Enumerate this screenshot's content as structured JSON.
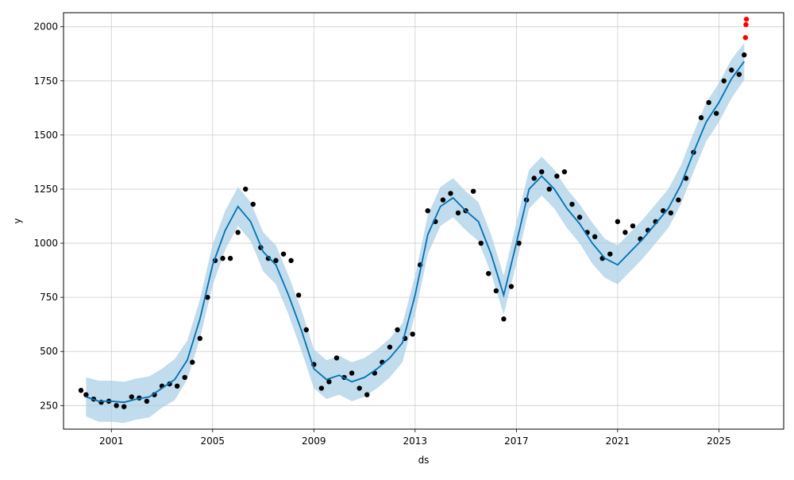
{
  "chart_data": {
    "type": "line",
    "xlabel": "ds",
    "ylabel": "y",
    "x_ticks": [
      "2001",
      "2005",
      "2009",
      "2013",
      "2017",
      "2021",
      "2025"
    ],
    "y_ticks": [
      250,
      500,
      750,
      1000,
      1250,
      1500,
      1750,
      2000
    ],
    "xlim": [
      1999.11,
      2027.56
    ],
    "ylim": [
      141,
      2065
    ],
    "grid": true,
    "colors": {
      "observed": "#000000",
      "forecast": "#0072B2",
      "uncertainty": "#a6cde6",
      "outliers": "#ff0000"
    },
    "series": [
      {
        "key": "forecast",
        "kind": "line",
        "x": [
          2000.0,
          2000.5,
          2001.0,
          2001.5,
          2002.0,
          2002.5,
          2003.0,
          2003.5,
          2004.0,
          2004.5,
          2005.0,
          2005.5,
          2006.0,
          2006.5,
          2007.0,
          2007.5,
          2008.0,
          2008.5,
          2009.0,
          2009.5,
          2010.0,
          2010.5,
          2011.0,
          2011.5,
          2012.0,
          2012.5,
          2013.0,
          2013.5,
          2014.0,
          2014.5,
          2015.0,
          2015.5,
          2016.0,
          2016.5,
          2017.0,
          2017.5,
          2018.0,
          2018.5,
          2019.0,
          2019.5,
          2020.0,
          2020.5,
          2021.0,
          2021.5,
          2022.0,
          2022.5,
          2023.0,
          2023.5,
          2024.0,
          2024.5,
          2025.0,
          2025.5,
          2026.0
        ],
        "y": [
          290,
          270,
          270,
          265,
          280,
          290,
          330,
          370,
          460,
          650,
          900,
          1060,
          1170,
          1100,
          960,
          900,
          760,
          600,
          420,
          370,
          390,
          360,
          380,
          420,
          470,
          540,
          760,
          1040,
          1170,
          1210,
          1150,
          1100,
          950,
          760,
          1000,
          1250,
          1310,
          1250,
          1160,
          1090,
          1000,
          930,
          900,
          960,
          1020,
          1090,
          1160,
          1270,
          1420,
          1560,
          1650,
          1760,
          1840
        ]
      },
      {
        "key": "uncertainty",
        "kind": "band",
        "x": [
          2000.0,
          2000.5,
          2001.0,
          2001.5,
          2002.0,
          2002.5,
          2003.0,
          2003.5,
          2004.0,
          2004.5,
          2005.0,
          2005.5,
          2006.0,
          2006.5,
          2007.0,
          2007.5,
          2008.0,
          2008.5,
          2009.0,
          2009.5,
          2010.0,
          2010.5,
          2011.0,
          2011.5,
          2012.0,
          2012.5,
          2013.0,
          2013.5,
          2014.0,
          2014.5,
          2015.0,
          2015.5,
          2016.0,
          2016.5,
          2017.0,
          2017.5,
          2018.0,
          2018.5,
          2019.0,
          2019.5,
          2020.0,
          2020.5,
          2021.0,
          2021.5,
          2022.0,
          2022.5,
          2023.0,
          2023.5,
          2024.0,
          2024.5,
          2025.0,
          2025.5,
          2026.0
        ],
        "lower": [
          200,
          175,
          175,
          170,
          185,
          195,
          240,
          275,
          370,
          560,
          805,
          970,
          1080,
          1010,
          870,
          810,
          670,
          505,
          330,
          280,
          300,
          270,
          290,
          330,
          380,
          450,
          670,
          950,
          1080,
          1120,
          1060,
          1010,
          860,
          670,
          905,
          1160,
          1220,
          1160,
          1070,
          1000,
          905,
          840,
          810,
          870,
          930,
          1000,
          1070,
          1180,
          1330,
          1470,
          1560,
          1670,
          1755
        ],
        "upper": [
          380,
          365,
          365,
          360,
          375,
          385,
          420,
          465,
          550,
          740,
          995,
          1150,
          1260,
          1190,
          1050,
          990,
          850,
          695,
          510,
          460,
          480,
          450,
          470,
          510,
          560,
          630,
          850,
          1130,
          1260,
          1300,
          1240,
          1190,
          1040,
          850,
          1095,
          1340,
          1400,
          1340,
          1250,
          1180,
          1095,
          1020,
          990,
          1050,
          1110,
          1180,
          1250,
          1360,
          1510,
          1650,
          1740,
          1850,
          1925
        ]
      },
      {
        "key": "observed",
        "kind": "scatter",
        "x": [
          1999.8,
          2000.0,
          2000.3,
          2000.6,
          2000.9,
          2001.2,
          2001.5,
          2001.8,
          2002.1,
          2002.4,
          2002.7,
          2003.0,
          2003.3,
          2003.6,
          2003.9,
          2004.2,
          2004.5,
          2004.8,
          2005.1,
          2005.4,
          2005.7,
          2006.0,
          2006.3,
          2006.6,
          2006.9,
          2007.2,
          2007.5,
          2007.8,
          2008.1,
          2008.4,
          2008.7,
          2009.0,
          2009.3,
          2009.6,
          2009.9,
          2010.2,
          2010.5,
          2010.8,
          2011.1,
          2011.4,
          2011.7,
          2012.0,
          2012.3,
          2012.6,
          2012.9,
          2013.2,
          2013.5,
          2013.8,
          2014.1,
          2014.4,
          2014.7,
          2015.0,
          2015.3,
          2015.6,
          2015.9,
          2016.2,
          2016.5,
          2016.8,
          2017.1,
          2017.4,
          2017.7,
          2018.0,
          2018.3,
          2018.6,
          2018.9,
          2019.2,
          2019.5,
          2019.8,
          2020.1,
          2020.4,
          2020.7,
          2021.0,
          2021.3,
          2021.6,
          2021.9,
          2022.2,
          2022.5,
          2022.8,
          2023.1,
          2023.4,
          2023.7,
          2024.0,
          2024.3,
          2024.6,
          2024.9,
          2025.2,
          2025.5,
          2025.8,
          2026.0
        ],
        "y": [
          320,
          300,
          280,
          265,
          270,
          250,
          245,
          290,
          285,
          270,
          300,
          340,
          350,
          340,
          380,
          450,
          560,
          750,
          920,
          930,
          930,
          1050,
          1250,
          1180,
          980,
          930,
          920,
          950,
          920,
          760,
          600,
          440,
          330,
          360,
          470,
          380,
          400,
          330,
          300,
          400,
          450,
          520,
          600,
          560,
          580,
          900,
          1150,
          1100,
          1200,
          1230,
          1140,
          1150,
          1240,
          1000,
          860,
          780,
          650,
          800,
          1000,
          1200,
          1300,
          1330,
          1250,
          1310,
          1330,
          1180,
          1120,
          1050,
          1030,
          930,
          950,
          1100,
          1050,
          1080,
          1020,
          1060,
          1100,
          1150,
          1140,
          1200,
          1300,
          1420,
          1580,
          1650,
          1600,
          1750,
          1800,
          1780,
          1870
        ]
      },
      {
        "key": "outliers",
        "kind": "scatter",
        "x": [
          2026.05,
          2026.07,
          2026.09
        ],
        "y": [
          1950,
          2010,
          2035
        ]
      }
    ]
  }
}
